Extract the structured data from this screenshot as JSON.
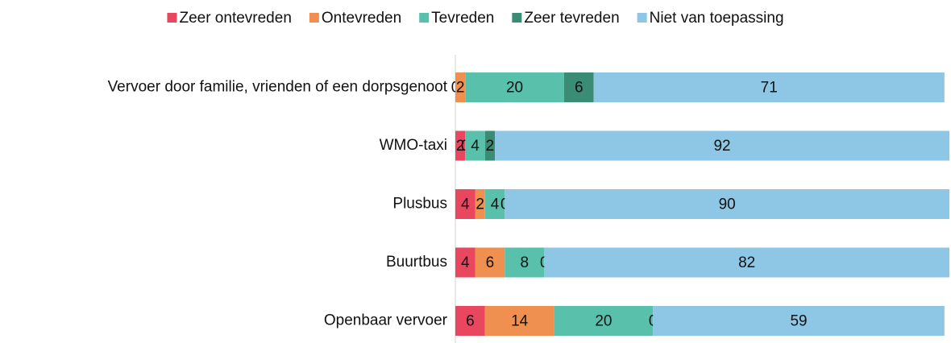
{
  "chart_data": {
    "type": "bar",
    "orientation": "horizontal",
    "stacked": true,
    "categories": [
      "Vervoer door familie, vrienden of een dorpsgenoot",
      "WMO-taxi",
      "Plusbus",
      "Buurtbus",
      "Openbaar vervoer"
    ],
    "series": [
      {
        "name": "Zeer ontevreden",
        "color": "#e8475f",
        "values": [
          0,
          2,
          4,
          4,
          6
        ]
      },
      {
        "name": "Ontevreden",
        "color": "#ef9050",
        "values": [
          2,
          0,
          2,
          6,
          14
        ]
      },
      {
        "name": "Tevreden",
        "color": "#58c0ab",
        "values": [
          20,
          4,
          4,
          8,
          20
        ]
      },
      {
        "name": "Zeer tevreden",
        "color": "#3b8c74",
        "values": [
          6,
          2,
          0,
          0,
          0
        ]
      },
      {
        "name": "Niet van toepassing",
        "color": "#8ec6e5",
        "values": [
          71,
          92,
          90,
          82,
          59
        ]
      }
    ],
    "xlim": [
      0,
      100
    ],
    "legend": "top"
  }
}
